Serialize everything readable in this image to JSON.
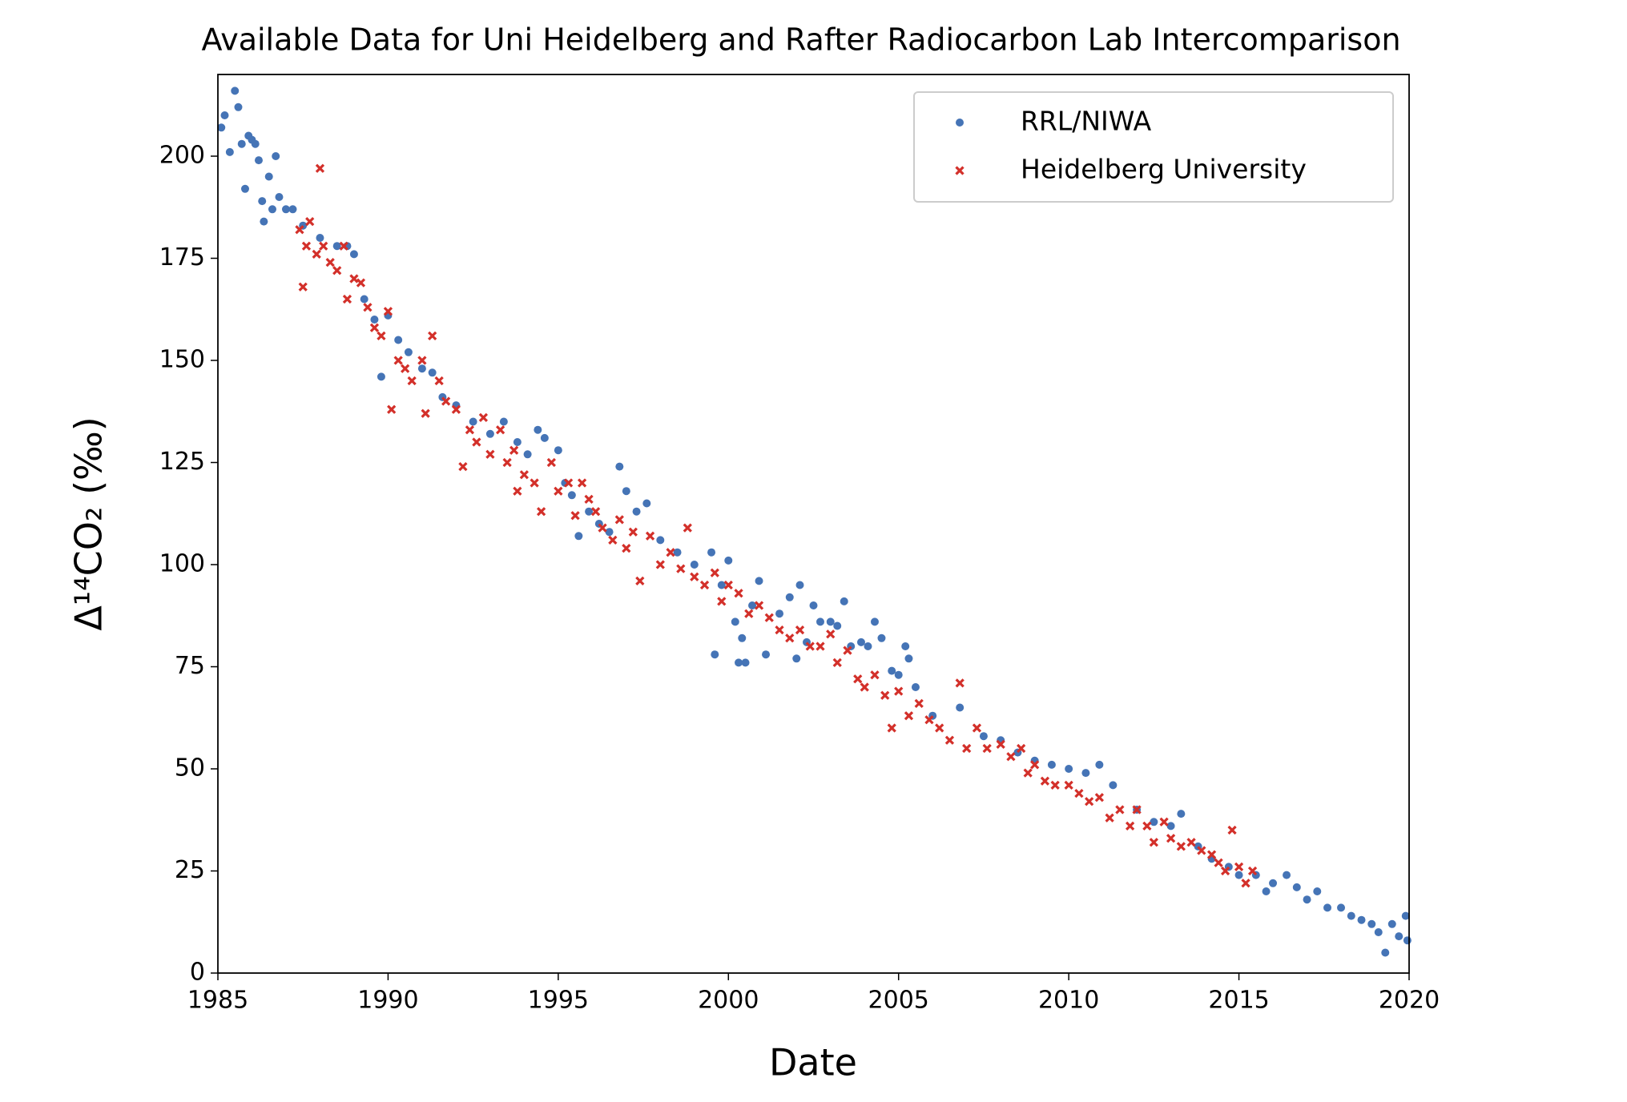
{
  "chart_data": {
    "type": "scatter",
    "title": "Available Data for Uni Heidelberg and Rafter Radiocarbon Lab Intercomparison",
    "xlabel": "Date",
    "ylabel": "Δ¹⁴CO₂ (‰)",
    "xlim": [
      1985,
      2020
    ],
    "ylim": [
      0,
      220
    ],
    "xticks": [
      1985,
      1990,
      1995,
      2000,
      2005,
      2010,
      2015,
      2020
    ],
    "yticks": [
      0,
      25,
      50,
      75,
      100,
      125,
      150,
      175,
      200
    ],
    "legend": "upper right",
    "grid": false,
    "series": [
      {
        "name": "RRL/NIWA",
        "color": "#4574b6",
        "marker": "circle",
        "x": [
          1985.1,
          1985.2,
          1985.5,
          1985.6,
          1985.35,
          1985.7,
          1985.8,
          1985.9,
          1986.0,
          1986.1,
          1986.2,
          1986.3,
          1986.35,
          1986.5,
          1986.6,
          1986.7,
          1986.8,
          1987.0,
          1987.2,
          1987.5,
          1988.0,
          1988.5,
          1988.8,
          1989.0,
          1989.3,
          1989.6,
          1989.8,
          1990.0,
          1990.3,
          1990.6,
          1991.0,
          1991.3,
          1991.6,
          1992.0,
          1992.5,
          1993.0,
          1993.4,
          1993.8,
          1994.1,
          1994.4,
          1994.6,
          1995.0,
          1995.2,
          1995.4,
          1995.6,
          1995.9,
          1996.2,
          1996.5,
          1996.8,
          1997.0,
          1997.3,
          1997.6,
          1998.0,
          1998.5,
          1999.0,
          1999.5,
          1999.6,
          1999.8,
          2000.0,
          2000.2,
          2000.3,
          2000.4,
          2000.5,
          2000.7,
          2000.9,
          2001.1,
          2001.5,
          2001.8,
          2002.1,
          2002.0,
          2002.3,
          2002.5,
          2002.7,
          2003.0,
          2003.2,
          2003.4,
          2003.6,
          2003.9,
          2004.1,
          2004.3,
          2004.5,
          2004.8,
          2005.0,
          2005.2,
          2005.3,
          2005.5,
          2006.0,
          2006.8,
          2007.5,
          2008.0,
          2008.5,
          2009.0,
          2009.5,
          2010.0,
          2010.5,
          2010.9,
          2011.3,
          2012.0,
          2012.5,
          2013.0,
          2013.3,
          2013.8,
          2014.2,
          2014.7,
          2015.0,
          2015.5,
          2015.8,
          2016.0,
          2016.4,
          2016.7,
          2017.0,
          2017.3,
          2017.6,
          2018.0,
          2018.3,
          2018.6,
          2018.9,
          2019.1,
          2019.3,
          2019.5,
          2019.7,
          2019.9,
          2019.95
        ],
        "values": [
          207,
          210,
          216,
          212,
          201,
          203,
          192,
          205,
          204,
          203,
          199,
          189,
          184,
          195,
          187,
          200,
          190,
          187,
          187,
          183,
          180,
          178,
          178,
          176,
          165,
          160,
          146,
          161,
          155,
          152,
          148,
          147,
          141,
          139,
          135,
          132,
          135,
          130,
          127,
          133,
          131,
          128,
          120,
          117,
          107,
          113,
          110,
          108,
          124,
          118,
          113,
          115,
          106,
          103,
          100,
          103,
          78,
          95,
          101,
          86,
          76,
          82,
          76,
          90,
          96,
          78,
          88,
          92,
          95,
          77,
          81,
          90,
          86,
          86,
          85,
          91,
          80,
          81,
          80,
          86,
          82,
          74,
          73,
          80,
          77,
          70,
          63,
          65,
          58,
          57,
          54,
          52,
          51,
          50,
          49,
          51,
          46,
          40,
          37,
          36,
          39,
          31,
          28,
          26,
          24,
          24,
          20,
          22,
          24,
          21,
          18,
          20,
          16,
          16,
          14,
          13,
          12,
          10,
          5,
          12,
          9,
          14,
          8
        ]
      },
      {
        "name": "Heidelberg University",
        "color": "#d3302a",
        "marker": "x",
        "x": [
          1987.4,
          1987.5,
          1987.6,
          1987.7,
          1987.9,
          1988.0,
          1988.1,
          1988.3,
          1988.5,
          1988.7,
          1988.8,
          1989.0,
          1989.2,
          1989.4,
          1989.6,
          1989.8,
          1990.0,
          1990.1,
          1990.3,
          1990.5,
          1990.7,
          1991.0,
          1991.1,
          1991.3,
          1991.5,
          1991.7,
          1992.0,
          1992.2,
          1992.4,
          1992.6,
          1992.8,
          1993.0,
          1993.3,
          1993.5,
          1993.7,
          1993.8,
          1994.0,
          1994.3,
          1994.5,
          1994.8,
          1995.0,
          1995.3,
          1995.5,
          1995.7,
          1995.9,
          1996.1,
          1996.3,
          1996.6,
          1996.8,
          1997.0,
          1997.2,
          1997.4,
          1997.7,
          1998.0,
          1998.3,
          1998.6,
          1998.8,
          1999.0,
          1999.3,
          1999.6,
          1999.8,
          2000.0,
          2000.3,
          2000.6,
          2000.9,
          2001.2,
          2001.5,
          2001.8,
          2002.1,
          2002.4,
          2002.7,
          2003.0,
          2003.2,
          2003.5,
          2003.8,
          2004.0,
          2004.3,
          2004.6,
          2004.8,
          2005.0,
          2005.3,
          2005.6,
          2005.9,
          2006.2,
          2006.5,
          2006.8,
          2007.0,
          2007.3,
          2007.6,
          2008.0,
          2008.3,
          2008.6,
          2008.8,
          2009.0,
          2009.3,
          2009.6,
          2010.0,
          2010.3,
          2010.6,
          2010.9,
          2011.2,
          2011.5,
          2011.8,
          2012.0,
          2012.3,
          2012.5,
          2012.8,
          2013.0,
          2013.3,
          2013.6,
          2013.9,
          2014.2,
          2014.4,
          2014.6,
          2014.8,
          2015.0,
          2015.2,
          2015.4
        ],
        "values": [
          182,
          168,
          178,
          184,
          176,
          197,
          178,
          174,
          172,
          178,
          165,
          170,
          169,
          163,
          158,
          156,
          162,
          138,
          150,
          148,
          145,
          150,
          137,
          156,
          145,
          140,
          138,
          124,
          133,
          130,
          136,
          127,
          133,
          125,
          128,
          118,
          122,
          120,
          113,
          125,
          118,
          120,
          112,
          120,
          116,
          113,
          109,
          106,
          111,
          104,
          108,
          96,
          107,
          100,
          103,
          99,
          109,
          97,
          95,
          98,
          91,
          95,
          93,
          88,
          90,
          87,
          84,
          82,
          84,
          80,
          80,
          83,
          76,
          79,
          72,
          70,
          73,
          68,
          60,
          69,
          63,
          66,
          62,
          60,
          57,
          71,
          55,
          60,
          55,
          56,
          53,
          55,
          49,
          51,
          47,
          46,
          46,
          44,
          42,
          43,
          38,
          40,
          36,
          40,
          36,
          32,
          37,
          33,
          31,
          32,
          30,
          29,
          27,
          25,
          35,
          26,
          22,
          25
        ]
      }
    ]
  }
}
